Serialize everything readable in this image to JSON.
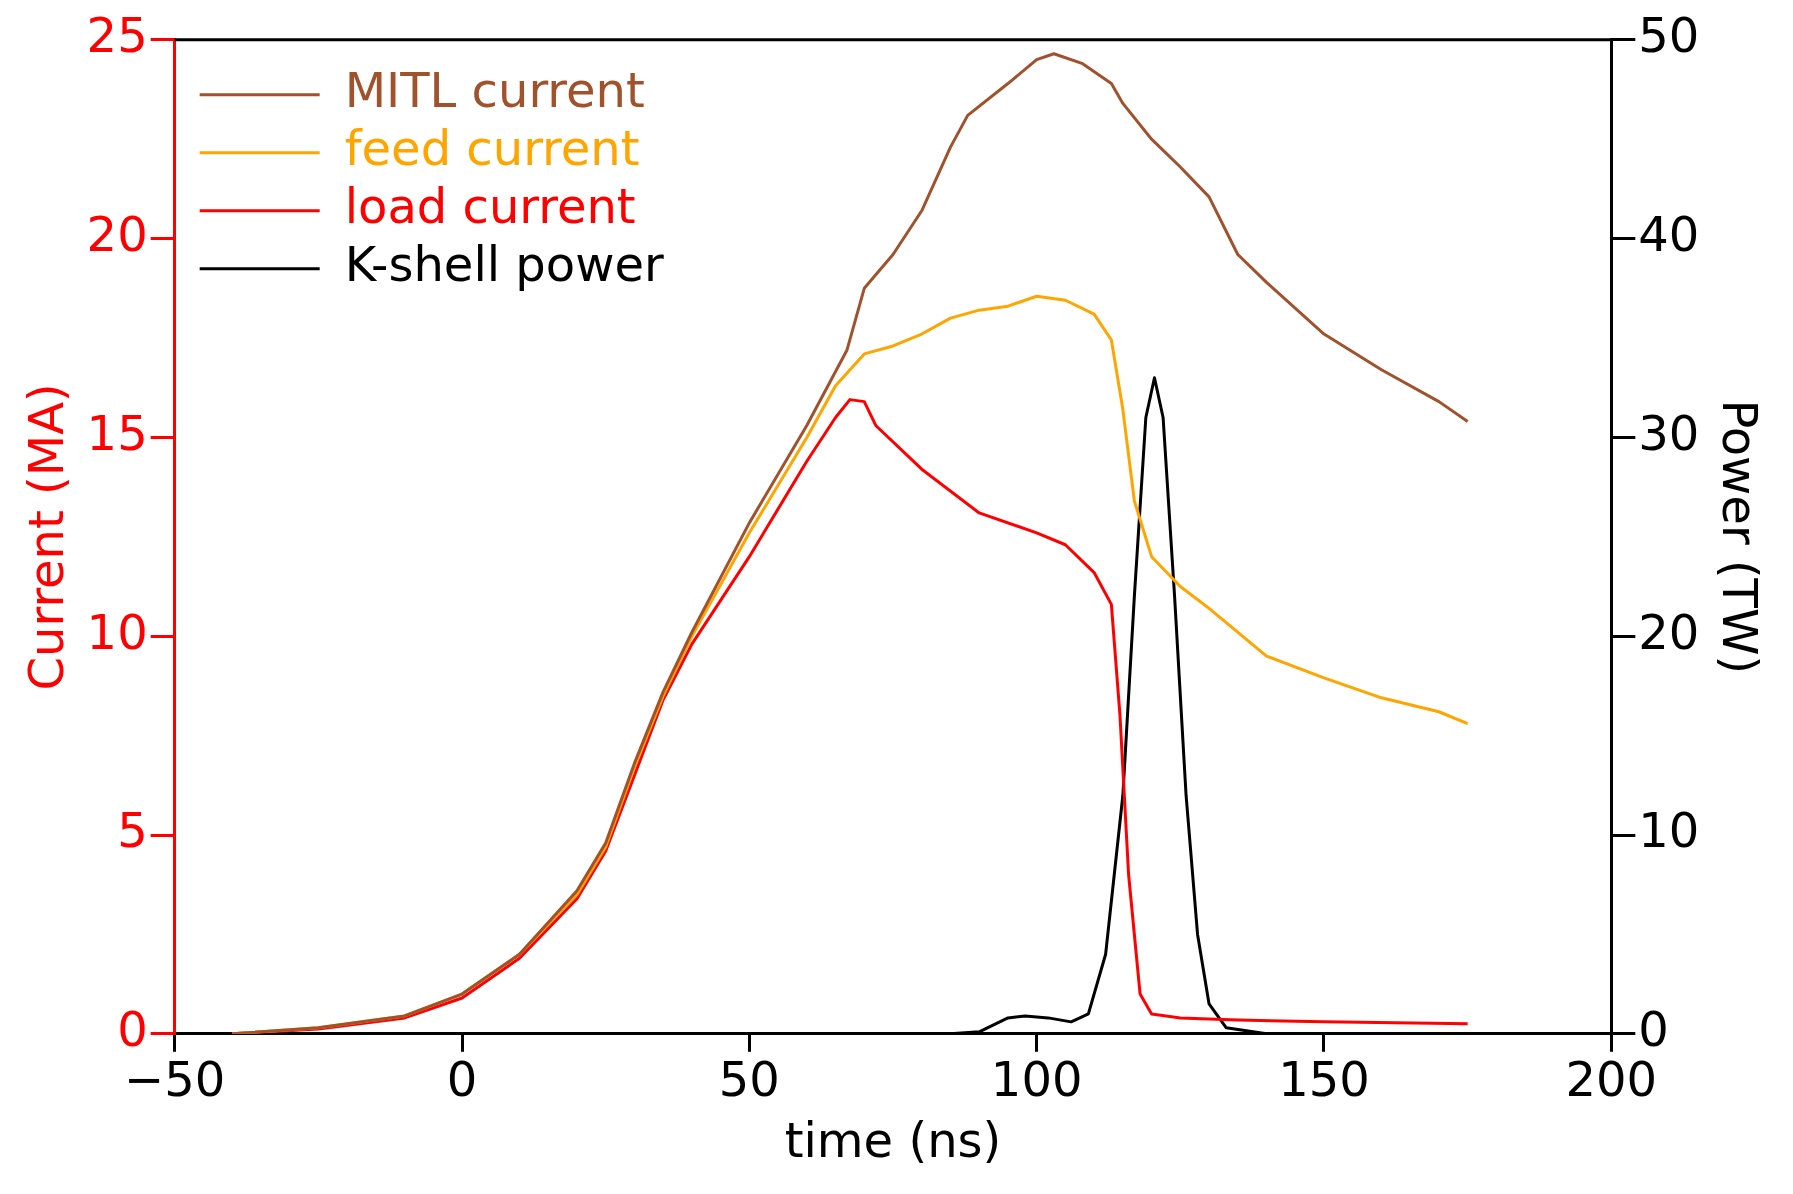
{
  "chart_data": {
    "type": "line",
    "xlabel": "time (ns)",
    "ylabel": "Current (MA)",
    "y2label": "Power (TW)",
    "xlim": [
      -50,
      200
    ],
    "xticks": [
      -50,
      0,
      50,
      100,
      150,
      200
    ],
    "ylim": [
      0,
      25
    ],
    "yticks": [
      0,
      5,
      10,
      15,
      20,
      25
    ],
    "y2lim": [
      0,
      50
    ],
    "y2ticks": [
      0,
      10,
      20,
      30,
      40,
      50
    ],
    "grid": false,
    "legend": "top left",
    "marker": "none",
    "line_style": "solid",
    "series": [
      {
        "name": "MITL current",
        "color": "#a0522d",
        "x": [
          -40,
          -25,
          -10,
          0,
          10,
          20,
          25,
          30,
          35,
          40,
          50,
          60,
          67,
          70,
          75,
          80,
          85,
          88,
          95,
          100,
          103,
          108,
          113,
          115,
          120,
          125,
          130,
          135,
          140,
          150,
          160,
          170,
          175
        ],
        "values": [
          0,
          0.15,
          0.45,
          1.0,
          2.0,
          3.6,
          4.8,
          6.8,
          8.6,
          10.1,
          12.85,
          15.3,
          17.2,
          18.75,
          19.6,
          20.7,
          22.3,
          23.1,
          23.9,
          24.5,
          24.65,
          24.4,
          23.9,
          23.4,
          22.5,
          21.8,
          21.05,
          19.6,
          18.9,
          17.6,
          16.7,
          15.9,
          15.4
        ]
      },
      {
        "name": "feed current",
        "color": "#ffa500",
        "x": [
          -40,
          -25,
          -10,
          0,
          10,
          20,
          25,
          30,
          35,
          40,
          50,
          60,
          65,
          70,
          75,
          80,
          85,
          90,
          95,
          100,
          105,
          110,
          113,
          115,
          117,
          120,
          125,
          130,
          140,
          150,
          160,
          170,
          175
        ],
        "values": [
          0,
          0.15,
          0.45,
          1.0,
          2.0,
          3.5,
          4.7,
          6.7,
          8.5,
          10.0,
          12.6,
          15.0,
          16.3,
          17.1,
          17.3,
          17.6,
          18.0,
          18.2,
          18.3,
          18.55,
          18.45,
          18.1,
          17.45,
          15.7,
          13.4,
          12.0,
          11.25,
          10.7,
          9.5,
          8.95,
          8.45,
          8.1,
          7.8
        ]
      },
      {
        "name": "load current",
        "color": "#ff0000",
        "x": [
          -40,
          -25,
          -10,
          0,
          10,
          20,
          25,
          30,
          35,
          40,
          50,
          60,
          65,
          67.5,
          70,
          72,
          80,
          90,
          100,
          105,
          110,
          113,
          114.5,
          116,
          118,
          120,
          125,
          135,
          150,
          175
        ],
        "values": [
          0,
          0.12,
          0.4,
          0.9,
          1.9,
          3.4,
          4.6,
          6.5,
          8.4,
          9.8,
          12.0,
          14.4,
          15.5,
          15.95,
          15.9,
          15.3,
          14.2,
          13.1,
          12.6,
          12.3,
          11.6,
          10.8,
          8,
          4,
          1.0,
          0.5,
          0.4,
          0.35,
          0.3,
          0.25
        ]
      },
      {
        "name": "K-shell power",
        "color": "#000000",
        "axis": "y2",
        "x": [
          85,
          90,
          95,
          98,
          102,
          106,
          109,
          112,
          115,
          117,
          119,
          120.5,
          122,
          124,
          126,
          128,
          130,
          133,
          140
        ],
        "values": [
          0,
          0.1,
          0.8,
          0.9,
          0.8,
          0.6,
          1,
          4,
          12,
          22,
          31,
          33,
          31,
          22,
          12,
          5,
          1.5,
          0.3,
          0
        ]
      }
    ]
  }
}
